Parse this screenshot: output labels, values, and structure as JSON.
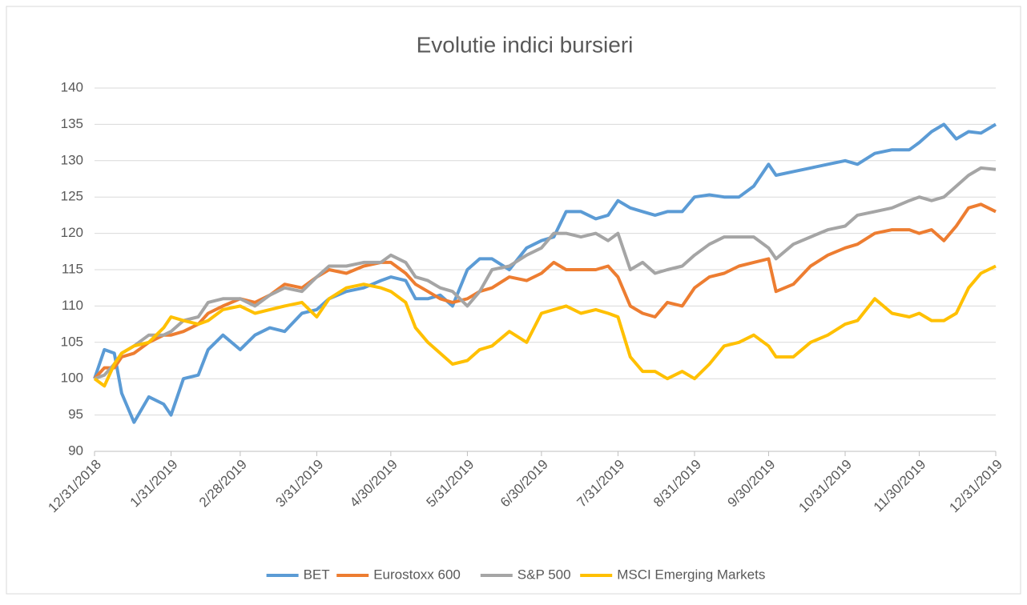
{
  "chart_data": {
    "type": "line",
    "title": "Evolutie indici bursieri",
    "x": [
      "12/31/2018",
      "1/4/2019",
      "1/8/2019",
      "1/11/2019",
      "1/16/2019",
      "1/22/2019",
      "1/28/2019",
      "1/31/2019",
      "2/5/2019",
      "2/11/2019",
      "2/15/2019",
      "2/21/2019",
      "2/28/2019",
      "3/6/2019",
      "3/12/2019",
      "3/18/2019",
      "3/25/2019",
      "3/31/2019",
      "4/5/2019",
      "4/12/2019",
      "4/19/2019",
      "4/26/2019",
      "4/30/2019",
      "5/6/2019",
      "5/10/2019",
      "5/15/2019",
      "5/20/2019",
      "5/25/2019",
      "5/31/2019",
      "6/5/2019",
      "6/10/2019",
      "6/17/2019",
      "6/24/2019",
      "6/30/2019",
      "7/5/2019",
      "7/10/2019",
      "7/16/2019",
      "7/22/2019",
      "7/27/2019",
      "7/31/2019",
      "8/5/2019",
      "8/10/2019",
      "8/15/2019",
      "8/20/2019",
      "8/26/2019",
      "8/31/2019",
      "9/6/2019",
      "9/12/2019",
      "9/18/2019",
      "9/24/2019",
      "9/30/2019",
      "10/3/2019",
      "10/10/2019",
      "10/17/2019",
      "10/24/2019",
      "10/31/2019",
      "11/5/2019",
      "11/12/2019",
      "11/19/2019",
      "11/26/2019",
      "11/30/2019",
      "12/5/2019",
      "12/10/2019",
      "12/15/2019",
      "12/20/2019",
      "12/25/2019",
      "12/31/2019"
    ],
    "series": [
      {
        "name": "BET",
        "color": "#5b9bd5",
        "values": [
          100,
          104,
          103.5,
          98,
          94,
          97.5,
          96.5,
          95,
          100,
          100.5,
          104,
          106,
          104,
          106,
          107,
          106.5,
          109,
          109.5,
          111,
          112,
          112.5,
          113.5,
          114,
          113.5,
          111,
          111,
          111.5,
          110,
          115,
          116.5,
          116.5,
          115,
          118,
          119,
          119.5,
          123,
          123,
          122,
          122.5,
          124.5,
          123.5,
          123,
          122.5,
          123,
          123,
          125,
          125.3,
          125,
          125,
          126.5,
          129.5,
          128,
          128.5,
          129,
          129.5,
          130,
          129.5,
          131,
          131.5,
          131.5,
          132.5,
          134,
          135,
          133,
          134,
          133.8,
          135
        ]
      },
      {
        "name": "Eurostoxx 600",
        "color": "#ed7d31",
        "values": [
          100,
          101.5,
          101.5,
          103,
          103.5,
          105,
          106,
          106,
          106.5,
          107.5,
          109,
          110,
          111,
          110.5,
          111.5,
          113,
          112.5,
          114,
          115,
          114.5,
          115.5,
          116,
          116,
          114.5,
          113,
          112,
          111,
          110.5,
          111,
          112,
          112.5,
          114,
          113.5,
          114.5,
          116,
          115,
          115,
          115,
          115.5,
          114,
          110,
          109,
          108.5,
          110.5,
          110,
          112.5,
          114,
          114.5,
          115.5,
          116,
          116.5,
          112,
          113,
          115.5,
          117,
          118,
          118.5,
          120,
          120.5,
          120.5,
          120,
          120.5,
          119,
          121,
          123.5,
          124,
          123
        ]
      },
      {
        "name": "S&P 500",
        "color": "#a5a5a5",
        "values": [
          100,
          100.5,
          102,
          103.5,
          104.5,
          106,
          106,
          106.5,
          108,
          108.5,
          110.5,
          111,
          111,
          110,
          111.5,
          112.5,
          112,
          114,
          115.5,
          115.5,
          116,
          116,
          117,
          116,
          114,
          113.5,
          112.5,
          112,
          110,
          112,
          115,
          115.5,
          117,
          118,
          120,
          120,
          119.5,
          120,
          119,
          120,
          115,
          116,
          114.5,
          115,
          115.5,
          117,
          118.5,
          119.5,
          119.5,
          119.5,
          118,
          116.5,
          118.5,
          119.5,
          120.5,
          121,
          122.5,
          123,
          123.5,
          124.5,
          125,
          124.5,
          125,
          126.5,
          128,
          129,
          128.8
        ]
      },
      {
        "name": "MSCI Emerging Markets",
        "color": "#ffc000",
        "values": [
          100,
          99,
          102,
          103.5,
          104.5,
          105,
          107,
          108.5,
          108,
          107.5,
          108,
          109.5,
          110,
          109,
          109.5,
          110,
          110.5,
          108.5,
          111,
          112.5,
          113,
          112.5,
          112,
          110.5,
          107,
          105,
          103.5,
          102,
          102.5,
          104,
          104.5,
          106.5,
          105,
          109,
          109.5,
          110,
          109,
          109.5,
          109,
          108.5,
          103,
          101,
          101,
          100,
          101,
          100,
          102,
          104.5,
          105,
          106,
          104.5,
          103,
          103,
          105,
          106,
          107.5,
          108,
          111,
          109,
          108.5,
          109,
          108,
          108,
          109,
          112.5,
          114.5,
          115.5
        ]
      }
    ],
    "xlim": [
      "12/31/2018",
      "12/31/2019"
    ],
    "xticks": [
      "12/31/2018",
      "1/31/2019",
      "2/28/2019",
      "3/31/2019",
      "4/30/2019",
      "5/31/2019",
      "6/30/2019",
      "7/31/2019",
      "8/31/2019",
      "9/30/2019",
      "10/31/2019",
      "11/30/2019",
      "12/31/2019"
    ],
    "ylim": [
      90,
      140
    ],
    "yticks": [
      90,
      95,
      100,
      105,
      110,
      115,
      120,
      125,
      130,
      135,
      140
    ],
    "grid": true,
    "legend": "bottom"
  }
}
